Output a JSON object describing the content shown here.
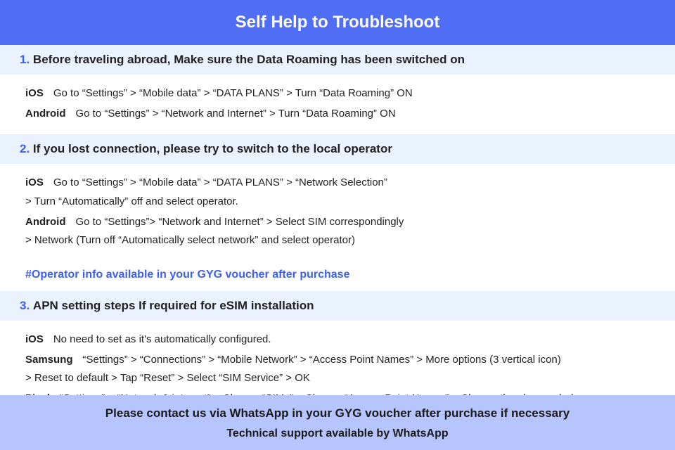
{
  "colors": {
    "primary": "#4f6df5",
    "section_bg": "#eaf1ff",
    "footer_bg": "#b7c5ff",
    "text": "#222222",
    "accent": "#3d5ef2"
  },
  "header": {
    "title": "Self Help to Troubleshoot"
  },
  "sections": [
    {
      "num": "1.",
      "title_bold": "Before traveling abroad,",
      "title_rest": " Make sure the Data Roaming has been switched on",
      "items": [
        {
          "platform": "iOS",
          "text": "Go to “Settings” > “Mobile data” > “DATA PLANS” > Turn “Data Roaming” ON"
        },
        {
          "platform": "Android",
          "text": "Go to “Settings” > “Network and Internet” > Turn “Data Roaming” ON"
        }
      ]
    },
    {
      "num": "2.",
      "title_bold": "If you lost connection, please try to switch to the local operator",
      "title_rest": "",
      "items": [
        {
          "platform": "iOS",
          "text": "Go to “Settings” > “Mobile data” > “DATA PLANS” > “Network Selection”",
          "cont": "> Turn “Automatically” off and select operator."
        },
        {
          "platform": "Android",
          "text": "Go to “Settings”>  “Network and Internet” > Select SIM correspondingly",
          "cont": "> Network (Turn off “Automatically select network” and select operator)"
        }
      ],
      "note": "#Operator info available in your GYG voucher after purchase"
    },
    {
      "num": "3.",
      "title_bold": "APN setting steps If required for eSIM installation",
      "title_rest": "",
      "items": [
        {
          "platform": "iOS",
          "text": "No need to set as it's automatically configured."
        },
        {
          "platform": "Samsung",
          "text": "“Settings” > “Connections” > “Mobile Network” > “Access Point Names” > More options (3 vertical icon)",
          "cont": "> Reset to default > Tap “Reset” > Select “SIM Service” > OK"
        },
        {
          "platform": "Pixel",
          "text": "“Settings” > “Network & internet” > Choose “SIMs” > Choose “Access Point Names” > Choose the plus symbol."
        }
      ]
    }
  ],
  "footer": {
    "line1": "Please contact us via WhatsApp  in your GYG voucher after purchase if necessary",
    "line2": "Technical support available by WhatsApp"
  }
}
